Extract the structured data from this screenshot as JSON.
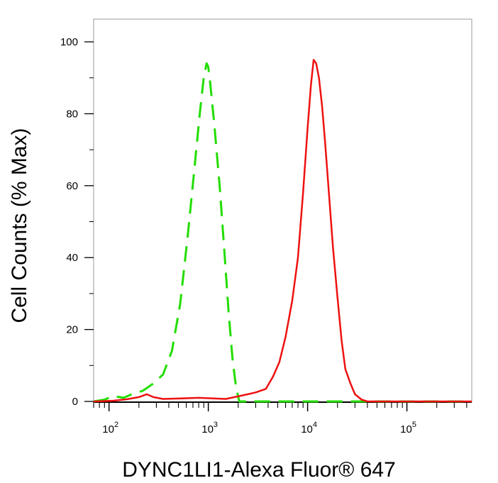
{
  "chart_data": {
    "type": "line",
    "title": "",
    "xlabel": "DYNC1LI1-Alexa Fluor® 647",
    "ylabel": "Cell Counts (% Max)",
    "x_scale": "log",
    "xlim": [
      70,
      450000
    ],
    "ylim": [
      0,
      105
    ],
    "y_ticks": [
      {
        "value": 0,
        "label": "0"
      },
      {
        "value": 20,
        "label": "20"
      },
      {
        "value": 40,
        "label": "40"
      },
      {
        "value": 60,
        "label": "60"
      },
      {
        "value": 80,
        "label": "80"
      },
      {
        "value": 100,
        "label": "100"
      }
    ],
    "x_ticks": [
      {
        "value": 100,
        "base": "10",
        "exp": "2"
      },
      {
        "value": 1000,
        "base": "10",
        "exp": "3"
      },
      {
        "value": 10000,
        "base": "10",
        "exp": "4"
      },
      {
        "value": 100000,
        "base": "10",
        "exp": "5"
      }
    ],
    "grid": false,
    "legend": "none",
    "series": [
      {
        "color": "#22dd00",
        "style": "dashed",
        "x": [
          70,
          90,
          110,
          140,
          170,
          220,
          280,
          350,
          430,
          520,
          620,
          720,
          820,
          900,
          960,
          1000,
          1050,
          1150,
          1300,
          1450,
          1600,
          1750,
          1900,
          2050,
          2300,
          3000,
          10000,
          100000,
          450000
        ],
        "y": [
          0,
          0.5,
          1.5,
          1,
          2,
          3,
          5,
          7.5,
          14,
          27,
          46,
          64,
          80,
          90,
          94,
          93,
          88,
          77,
          60,
          42,
          25,
          12,
          4,
          0,
          0,
          0,
          0,
          0,
          0
        ]
      },
      {
        "color": "#ee1111",
        "style": "solid",
        "x": [
          70,
          110,
          150,
          200,
          240,
          280,
          350,
          500,
          800,
          1500,
          2500,
          3000,
          3800,
          4500,
          5200,
          6000,
          7000,
          8000,
          9000,
          10000,
          10800,
          11500,
          12200,
          13000,
          14000,
          15000,
          16500,
          18000,
          20000,
          22000,
          24000,
          27000,
          30000,
          35000,
          40000,
          60000,
          100000,
          450000
        ],
        "y": [
          0,
          0.2,
          0.6,
          1.2,
          2,
          1.2,
          0.7,
          0.8,
          1,
          0.7,
          2,
          2.5,
          3.5,
          7,
          11,
          18,
          28,
          40,
          58,
          76,
          88,
          95,
          94,
          90,
          82,
          72,
          57,
          43,
          29,
          17,
          9,
          5,
          2,
          0.5,
          0,
          0,
          0,
          0
        ]
      }
    ]
  }
}
